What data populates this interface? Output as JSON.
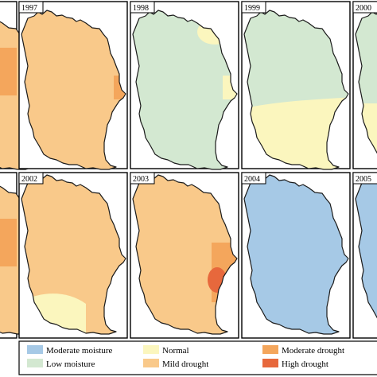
{
  "colors": {
    "moderate_moisture": "#a6c9e6",
    "low_moisture": "#d3e8d1",
    "normal": "#fbf6be",
    "mild_drought": "#f9c98a",
    "moderate_drought": "#f4a65c",
    "high_drought": "#e7683c"
  },
  "panels": [
    {
      "label": "",
      "base": "mild_drought"
    },
    {
      "label": "1997",
      "base": "mild_drought"
    },
    {
      "label": "1998",
      "base": "low_moisture"
    },
    {
      "label": "1999",
      "base": "low_moisture"
    },
    {
      "label": "2000",
      "base": "low_moisture"
    },
    {
      "label": "",
      "base": "mild_drought"
    },
    {
      "label": "2002",
      "base": "mild_drought"
    },
    {
      "label": "2003",
      "base": "mild_drought"
    },
    {
      "label": "2004",
      "base": "moderate_moisture"
    },
    {
      "label": "2005",
      "base": "moderate_moisture"
    }
  ],
  "legend": [
    {
      "label": "Moderate moisture",
      "color": "moderate_moisture"
    },
    {
      "label": "Low moisture",
      "color": "low_moisture"
    },
    {
      "label": "Normal",
      "color": "normal"
    },
    {
      "label": "Mild drought",
      "color": "mild_drought"
    },
    {
      "label": "Moderate drought",
      "color": "moderate_drought"
    },
    {
      "label": "High drought",
      "color": "high_drought"
    }
  ]
}
